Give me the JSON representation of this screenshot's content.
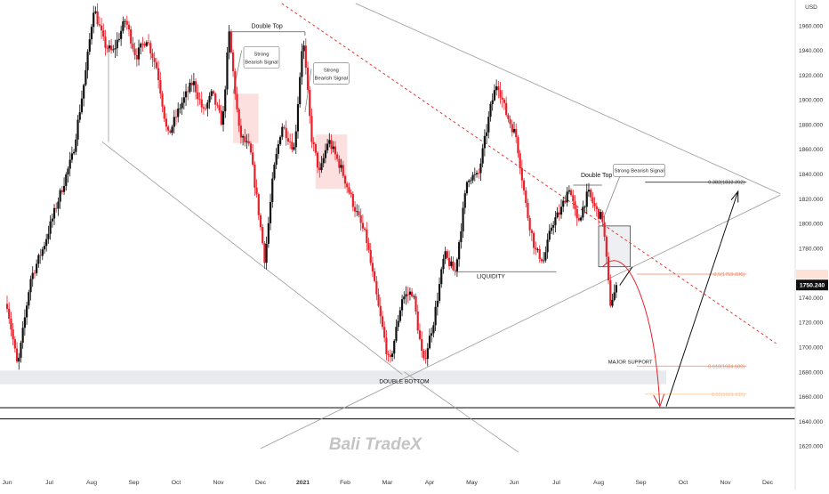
{
  "chart_data": {
    "type": "candlestick",
    "title": "",
    "y_unit": "USD",
    "ylim": [
      1610,
      1975
    ],
    "y_ticks": [
      1620,
      1640,
      1660,
      1680,
      1700,
      1720,
      1740,
      1760,
      1780,
      1800,
      1820,
      1840,
      1860,
      1880,
      1900,
      1920,
      1940,
      1960
    ],
    "y_tick_labels": [
      "1620.000",
      "1640.000",
      "1660.000",
      "1680.000",
      "1700.000",
      "1720.000",
      "1740.000",
      "1760.000",
      "1780.000",
      "1800.000",
      "1820.000",
      "1840.000",
      "1860.000",
      "1880.000",
      "1900.000",
      "1920.000",
      "1940.000",
      "1960.000"
    ],
    "x_ticks": [
      "Jun",
      "Jul",
      "Aug",
      "Sep",
      "Oct",
      "Nov",
      "Dec",
      "2021",
      "Feb",
      "Mar",
      "Apr",
      "May",
      "Jun",
      "Jul",
      "Aug",
      "Sep",
      "Oct",
      "Nov",
      "Dec"
    ],
    "x_tick_months": [
      0,
      1,
      2,
      3,
      4,
      5,
      6,
      7,
      8,
      9,
      10,
      11,
      12,
      13,
      14,
      15,
      16,
      17,
      18
    ],
    "price_path": [
      [
        0.0,
        1735
      ],
      [
        0.25,
        1683
      ],
      [
        0.55,
        1755
      ],
      [
        0.85,
        1780
      ],
      [
        1.2,
        1818
      ],
      [
        1.55,
        1855
      ],
      [
        1.85,
        1920
      ],
      [
        2.05,
        1975
      ],
      [
        2.3,
        1945
      ],
      [
        2.5,
        1938
      ],
      [
        2.8,
        1965
      ],
      [
        3.05,
        1935
      ],
      [
        3.3,
        1950
      ],
      [
        3.55,
        1925
      ],
      [
        3.8,
        1870
      ],
      [
        4.1,
        1895
      ],
      [
        4.4,
        1915
      ],
      [
        4.65,
        1890
      ],
      [
        4.85,
        1905
      ],
      [
        5.1,
        1880
      ],
      [
        5.25,
        1955
      ],
      [
        5.5,
        1872
      ],
      [
        5.75,
        1860
      ],
      [
        5.95,
        1810
      ],
      [
        6.1,
        1770
      ],
      [
        6.3,
        1840
      ],
      [
        6.5,
        1880
      ],
      [
        6.8,
        1860
      ],
      [
        7.0,
        1952
      ],
      [
        7.2,
        1870
      ],
      [
        7.4,
        1840
      ],
      [
        7.6,
        1868
      ],
      [
        7.9,
        1845
      ],
      [
        8.2,
        1815
      ],
      [
        8.5,
        1788
      ],
      [
        8.8,
        1730
      ],
      [
        9.05,
        1685
      ],
      [
        9.35,
        1740
      ],
      [
        9.6,
        1745
      ],
      [
        9.85,
        1686
      ],
      [
        10.1,
        1722
      ],
      [
        10.35,
        1775
      ],
      [
        10.6,
        1760
      ],
      [
        10.9,
        1838
      ],
      [
        11.15,
        1838
      ],
      [
        11.45,
        1895
      ],
      [
        11.6,
        1915
      ],
      [
        11.8,
        1890
      ],
      [
        12.05,
        1870
      ],
      [
        12.3,
        1810
      ],
      [
        12.5,
        1778
      ],
      [
        12.7,
        1770
      ],
      [
        12.9,
        1800
      ],
      [
        13.1,
        1810
      ],
      [
        13.3,
        1830
      ],
      [
        13.5,
        1800
      ],
      [
        13.75,
        1825
      ],
      [
        13.95,
        1810
      ],
      [
        14.1,
        1803
      ],
      [
        14.2,
        1765
      ],
      [
        14.27,
        1735
      ],
      [
        14.35,
        1742
      ],
      [
        14.45,
        1750
      ]
    ],
    "last_price": 1750.24,
    "last_price_label": "1750.240",
    "fib_levels": [
      {
        "label": "0.382(1833.392)",
        "value": 1833.392
      },
      {
        "label": "0.5(1759.036)",
        "value": 1759.036
      },
      {
        "label": "0.618(1684.680)",
        "value": 1684.68
      },
      {
        "label": "0.65(1661.911)",
        "value": 1661.911
      }
    ],
    "annotations": [
      {
        "text": "Double Top",
        "month": 5.25,
        "value": 1960
      },
      {
        "text": "Strong Bearish Signal",
        "month": 5.6,
        "value": 1943
      },
      {
        "text": "Strong Bearish Signal",
        "month": 7.25,
        "value": 1930
      },
      {
        "text": "Strong Bearish Signal",
        "month": 14.35,
        "value": 1848
      },
      {
        "text": "Double Top",
        "month": 13.95,
        "value": 1836
      },
      {
        "text": "LIQUIDITY",
        "month": 11.45,
        "value": 1761
      },
      {
        "text": "DOUBLE BOTTOM",
        "month": 9.4,
        "value": 1676
      },
      {
        "text": "MAJOR SUPPORT",
        "month": 14.75,
        "value": 1688
      }
    ],
    "support_zone": [
      1670,
      1681
    ],
    "horizontal_lines": [
      1651,
      1642
    ],
    "resistance_box": {
      "from_month": 14.0,
      "to_month": 14.75,
      "low": 1765,
      "high": 1798
    }
  },
  "watermark": "Bali TradeX"
}
